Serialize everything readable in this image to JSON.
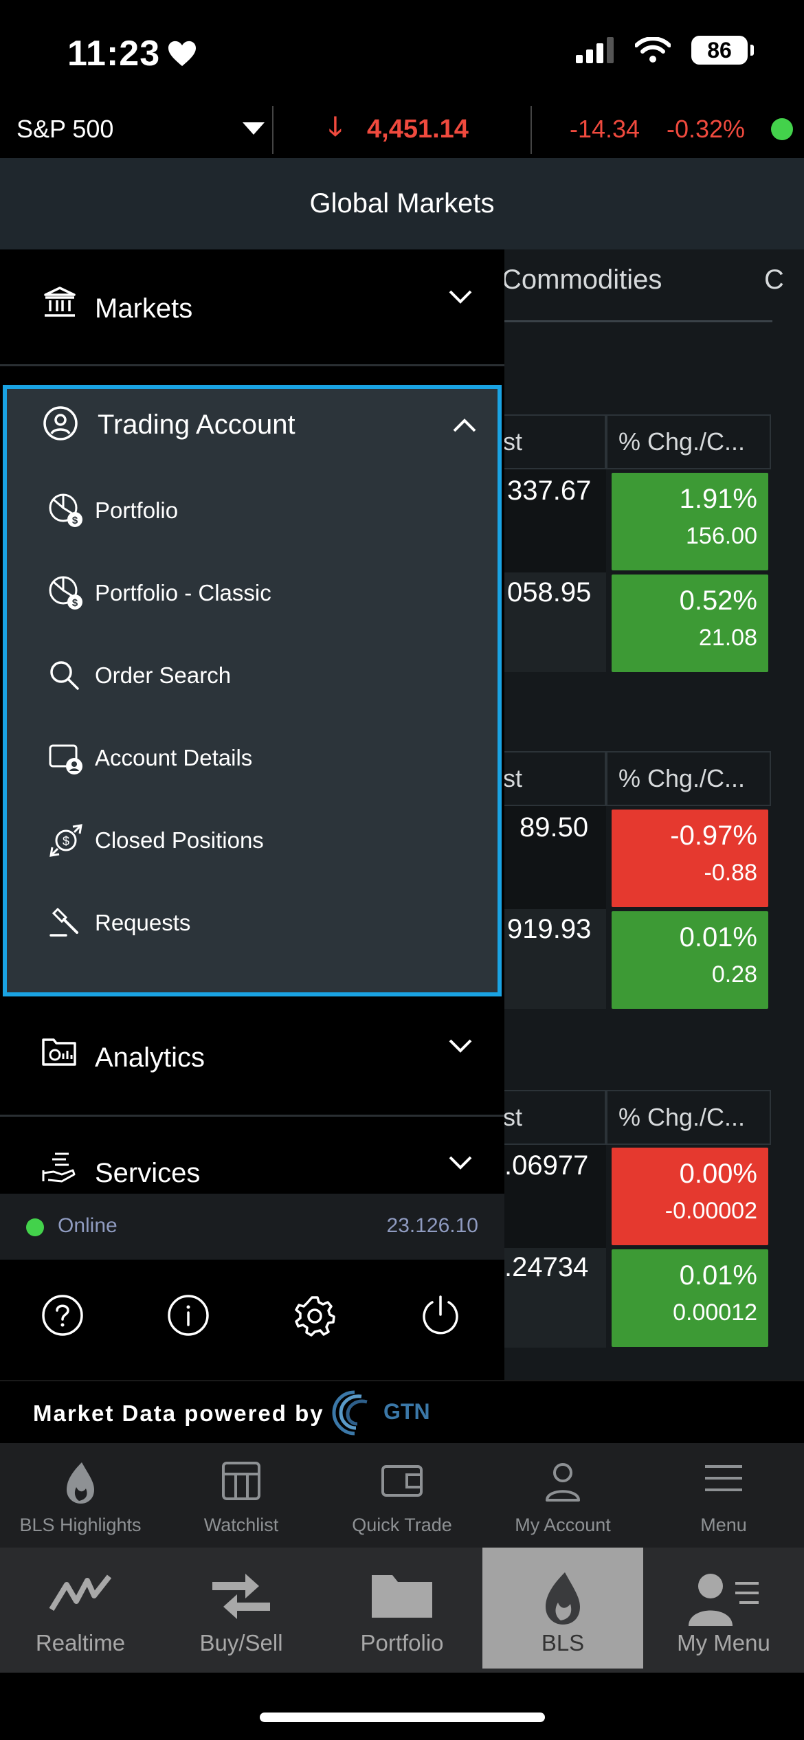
{
  "status": {
    "time": "11:23",
    "battery": "86"
  },
  "ticker": {
    "name": "S&P 500",
    "price": "4,451.14",
    "change": "-14.34",
    "percent": "-0.32%"
  },
  "header": {
    "title": "Global Markets"
  },
  "background": {
    "tab": "Commodities",
    "tab_next": "C",
    "col_last": "st",
    "col_chg": "% Chg./C...",
    "groups": [
      {
        "rows": [
          {
            "last": "337.67",
            "pct": "1.91%",
            "val": "156.00",
            "color": "#3d9a35"
          },
          {
            "last": "058.95",
            "pct": "0.52%",
            "val": "21.08",
            "color": "#3d9a35"
          }
        ]
      },
      {
        "rows": [
          {
            "last": "89.50",
            "pct": "-0.97%",
            "val": "-0.88",
            "color": "#e5392f"
          },
          {
            "last": "919.93",
            "pct": "0.01%",
            "val": "0.28",
            "color": "#3d9a35"
          }
        ]
      },
      {
        "rows": [
          {
            "last": ".06977",
            "pct": "0.00%",
            "val": "-0.00002",
            "color": "#e5392f"
          },
          {
            "last": ".24734",
            "pct": "0.01%",
            "val": "0.00012",
            "color": "#3d9a35"
          }
        ]
      }
    ]
  },
  "drawer": {
    "markets": "Markets",
    "trading_account": "Trading Account",
    "items": [
      {
        "label": "Portfolio",
        "icon": "portfolio-pie-icon"
      },
      {
        "label": "Portfolio - Classic",
        "icon": "portfolio-classic-icon"
      },
      {
        "label": "Order Search",
        "icon": "search-icon"
      },
      {
        "label": "Account Details",
        "icon": "account-details-icon"
      },
      {
        "label": "Closed Positions",
        "icon": "closed-positions-icon"
      },
      {
        "label": "Requests",
        "icon": "gavel-icon"
      }
    ],
    "analytics": "Analytics",
    "services": "Services",
    "online": "Online",
    "version": "23.126.10"
  },
  "powered": {
    "text": "Market Data powered by",
    "brand": "GTN"
  },
  "tabbar_top": [
    "BLS Highlights",
    "Watchlist",
    "Quick Trade",
    "My Account",
    "Menu"
  ],
  "tabbar_bottom": [
    "Realtime",
    "Buy/Sell",
    "Portfolio",
    "BLS",
    "My Menu"
  ],
  "colors": {
    "accent_blue": "#1aa3e3",
    "up": "#3d9a35",
    "down": "#e5392f",
    "online": "#43d24b"
  }
}
